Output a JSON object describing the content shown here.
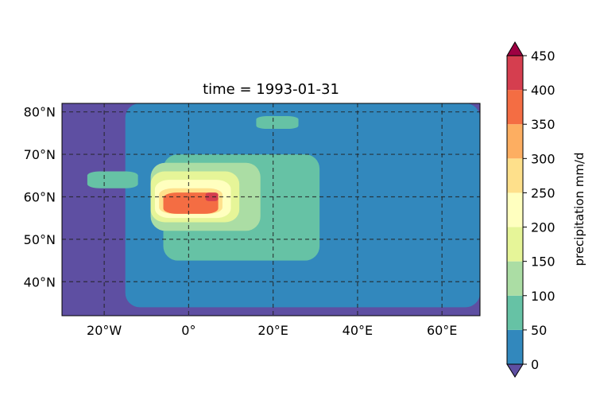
{
  "chart_data": {
    "type": "heatmap",
    "subtype": "filled-contour map",
    "title": "time = 1993-01-31",
    "xlabel": "",
    "ylabel": "",
    "xlim": [
      -30,
      69
    ],
    "ylim": [
      32,
      82
    ],
    "x_ticks": [
      {
        "value": -20,
        "label": "20°W"
      },
      {
        "value": 0,
        "label": "0°"
      },
      {
        "value": 20,
        "label": "20°E"
      },
      {
        "value": 40,
        "label": "40°E"
      },
      {
        "value": 60,
        "label": "60°E"
      }
    ],
    "y_ticks": [
      {
        "value": 40,
        "label": "40°N"
      },
      {
        "value": 50,
        "label": "50°N"
      },
      {
        "value": 60,
        "label": "60°N"
      },
      {
        "value": 70,
        "label": "70°N"
      },
      {
        "value": 80,
        "label": "80°N"
      }
    ],
    "grid": "dashed",
    "colorbar": {
      "label": "precipitation mm/d",
      "extend": "both",
      "levels": [
        0,
        50,
        100,
        150,
        200,
        250,
        300,
        350,
        400,
        450
      ],
      "tick_labels": [
        "0",
        "50",
        "100",
        "150",
        "200",
        "250",
        "300",
        "350",
        "400",
        "450"
      ],
      "colors": [
        "#3288bd",
        "#66c2a5",
        "#abdda4",
        "#e6f598",
        "#ffffbf",
        "#fee08b",
        "#fdae61",
        "#f46d43",
        "#d53e4f"
      ],
      "under_color": "#5e4fa2",
      "over_color": "#9e0142"
    },
    "regions": [
      {
        "level": 0,
        "lon": [
          -15,
          69
        ],
        "lat": [
          34,
          82
        ]
      },
      {
        "level": 1,
        "lon": [
          -6,
          31
        ],
        "lat": [
          45,
          70
        ]
      },
      {
        "level": 1,
        "lon": [
          -24,
          -12
        ],
        "lat": [
          62,
          66
        ]
      },
      {
        "level": 1,
        "lon": [
          16,
          26
        ],
        "lat": [
          76,
          79
        ]
      },
      {
        "level": 2,
        "lon": [
          -9,
          17
        ],
        "lat": [
          52,
          68
        ]
      },
      {
        "level": 3,
        "lon": [
          -9,
          12
        ],
        "lat": [
          54,
          66
        ]
      },
      {
        "level": 4,
        "lon": [
          -8,
          10
        ],
        "lat": [
          55,
          64
        ]
      },
      {
        "level": 5,
        "lon": [
          -7,
          8
        ],
        "lat": [
          56,
          62
        ]
      },
      {
        "level": 7,
        "lon": [
          -6,
          7
        ],
        "lat": [
          56,
          61
        ]
      },
      {
        "level": 8,
        "lon": [
          4,
          7
        ],
        "lat": [
          59,
          61
        ]
      }
    ]
  }
}
